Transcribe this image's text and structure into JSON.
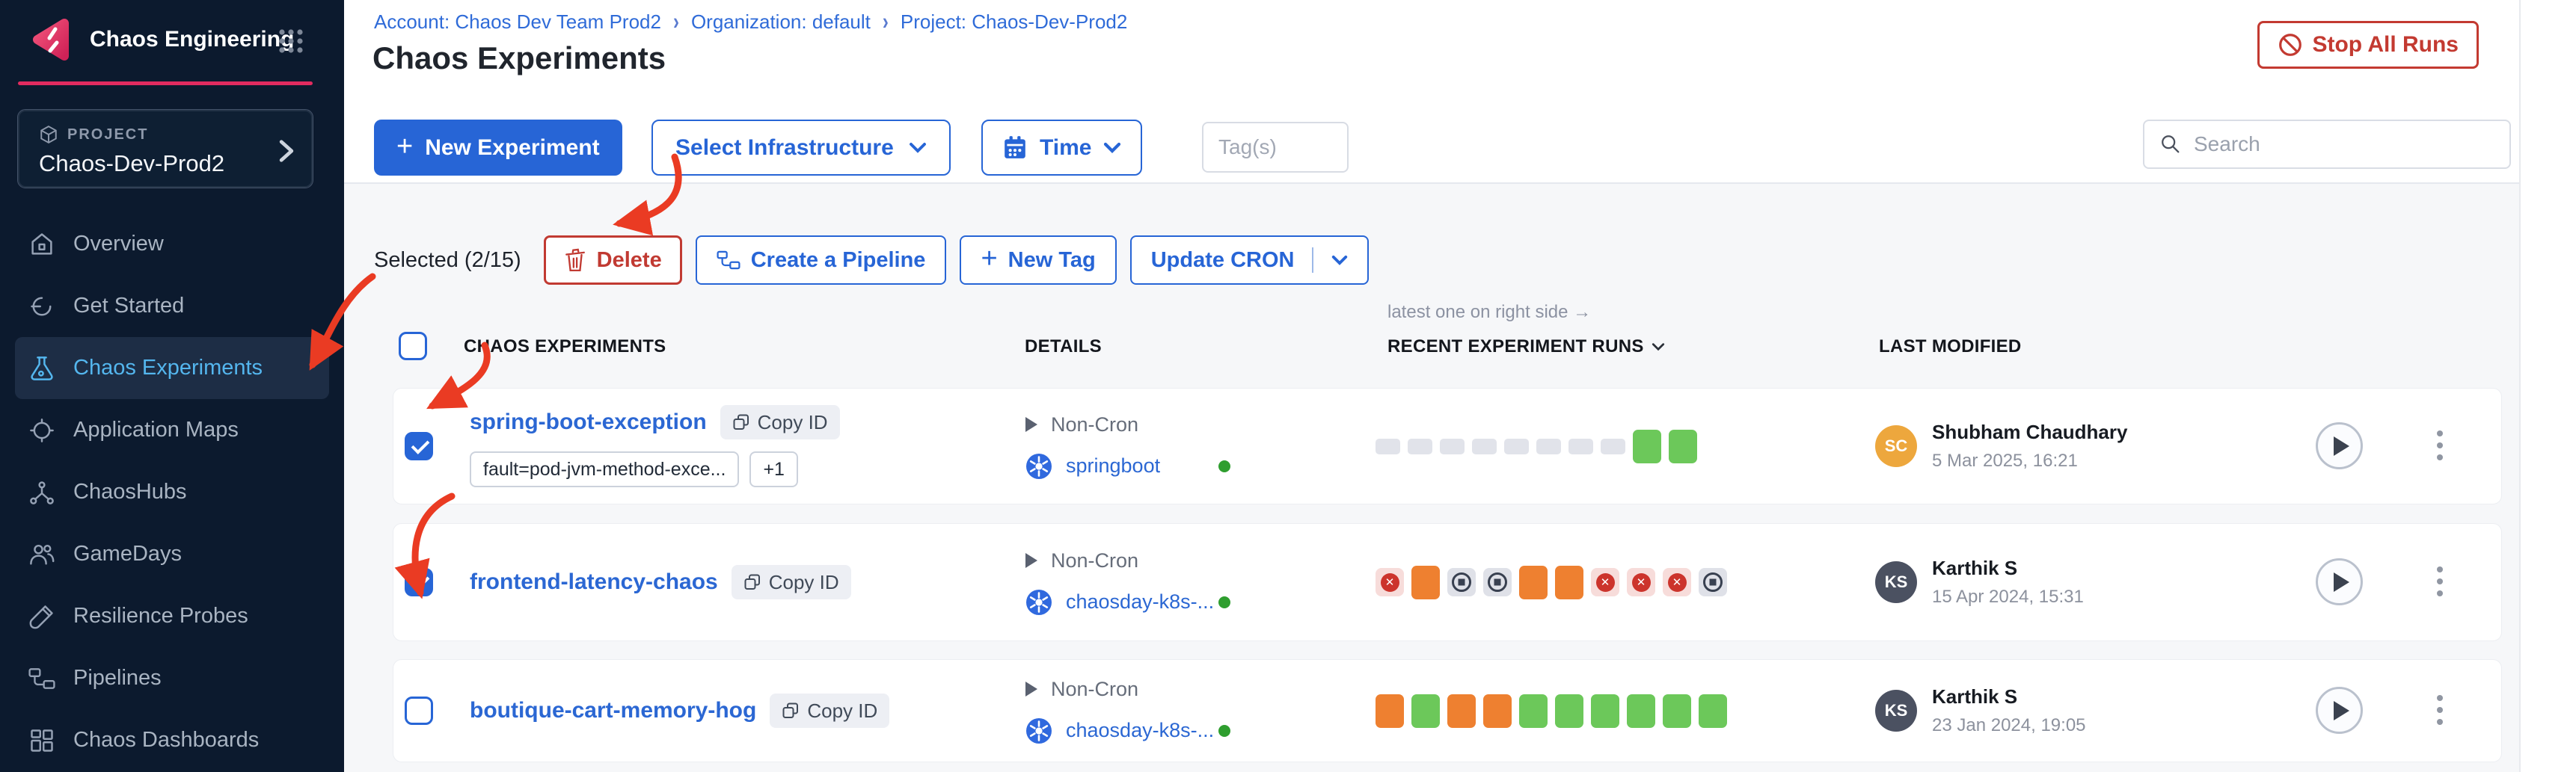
{
  "app": {
    "logo_title": "Chaos Engineering"
  },
  "breadcrumb": {
    "items": [
      "Account: Chaos Dev Team Prod2",
      "Organization: default",
      "Project: Chaos-Dev-Prod2"
    ]
  },
  "page": {
    "title": "Chaos Experiments",
    "stop_all_runs": "Stop All Runs"
  },
  "sidebar": {
    "project_label": "PROJECT",
    "project_name": "Chaos-Dev-Prod2",
    "items": [
      {
        "label": "Overview",
        "icon": "home-icon",
        "active": false
      },
      {
        "label": "Get Started",
        "icon": "get-started-icon",
        "active": false
      },
      {
        "label": "Chaos Experiments",
        "icon": "flask-icon",
        "active": true
      },
      {
        "label": "Application Maps",
        "icon": "target-icon",
        "active": false
      },
      {
        "label": "ChaosHubs",
        "icon": "hub-icon",
        "active": false
      },
      {
        "label": "GameDays",
        "icon": "people-icon",
        "active": false
      },
      {
        "label": "Resilience Probes",
        "icon": "probe-icon",
        "active": false
      },
      {
        "label": "Pipelines",
        "icon": "pipeline-icon",
        "active": false
      },
      {
        "label": "Chaos Dashboards",
        "icon": "dashboard-icon",
        "active": false
      }
    ]
  },
  "toolbar": {
    "new_experiment": "New Experiment",
    "select_infrastructure": "Select Infrastructure",
    "time": "Time",
    "tags_placeholder": "Tag(s)",
    "search_placeholder": "Search"
  },
  "selection_bar": {
    "selected": "Selected (2/15)",
    "delete": "Delete",
    "create_pipeline": "Create a Pipeline",
    "new_tag": "New Tag",
    "update_cron": "Update CRON"
  },
  "table": {
    "note": "latest one on right side →",
    "headers": {
      "experiments": "CHAOS EXPERIMENTS",
      "details": "DETAILS",
      "runs": "RECENT EXPERIMENT RUNS",
      "last_modified": "LAST MODIFIED"
    },
    "rows": [
      {
        "name": "spring-boot-exception",
        "copy_label": "Copy ID",
        "tags": [
          "fault=pod-jvm-method-exce...",
          "+1"
        ],
        "schedule": "Non-Cron",
        "infrastructure": "springboot",
        "checked": true,
        "runs": [
          "none",
          "none",
          "none",
          "none",
          "none",
          "none",
          "none",
          "none",
          "passed",
          "passed"
        ],
        "modified": {
          "initials": "SC",
          "name": "Shubham Chaudhary",
          "date": "5 Mar 2025, 16:21",
          "color": "#eda73d"
        }
      },
      {
        "name": "frontend-latency-chaos",
        "copy_label": "Copy ID",
        "tags": [],
        "schedule": "Non-Cron",
        "infrastructure": "chaosday-k8s-...",
        "checked": true,
        "runs": [
          "failed",
          "running",
          "stopped",
          "stopped",
          "running",
          "running",
          "failed",
          "failed",
          "failed",
          "stopped"
        ],
        "modified": {
          "initials": "KS",
          "name": "Karthik S",
          "date": "15 Apr 2024, 15:31",
          "color": "#4b5161"
        }
      },
      {
        "name": "boutique-cart-memory-hog",
        "copy_label": "Copy ID",
        "tags": [],
        "schedule": "Non-Cron",
        "infrastructure": "chaosday-k8s-...",
        "checked": false,
        "runs": [
          "running",
          "passed",
          "running",
          "running",
          "passed",
          "passed",
          "passed",
          "passed",
          "passed",
          "passed"
        ],
        "modified": {
          "initials": "KS",
          "name": "Karthik S",
          "date": "23 Jan 2024, 19:05",
          "color": "#4b5161"
        }
      }
    ]
  },
  "colors": {
    "accent": "#2765d6",
    "brand_pink": "#e22b5f",
    "danger": "#c33a31",
    "annotation": "#ea3b23",
    "run_passed": "#6cc85a",
    "run_running": "#ee8030",
    "sidebar_active": "#54b6ee"
  }
}
